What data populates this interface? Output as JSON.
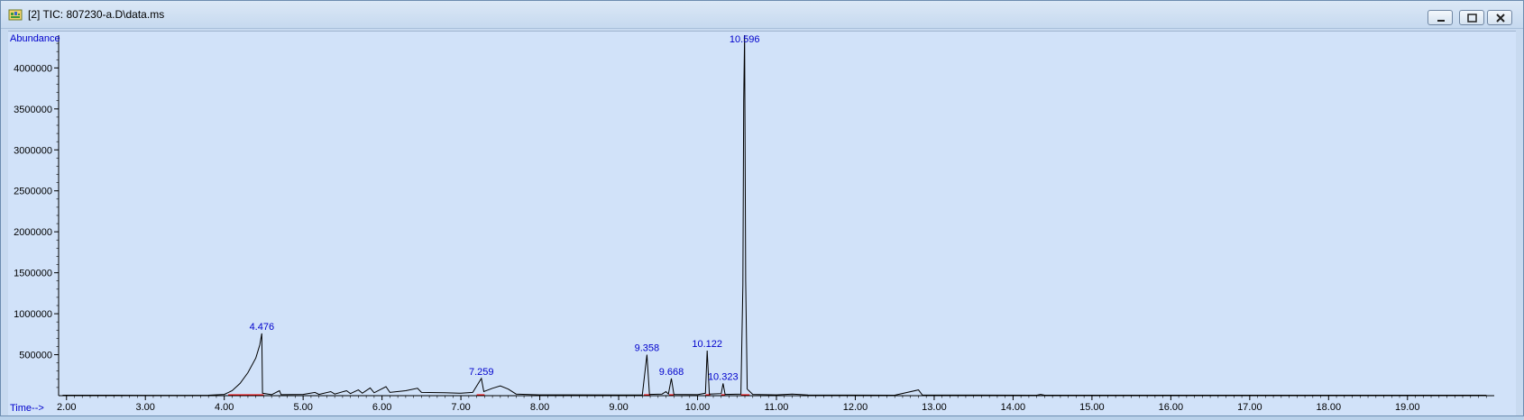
{
  "window": {
    "title": "[2] TIC: 807230-a.D\\data.ms",
    "icon": "chromatogram-app-icon",
    "buttons": [
      "minimize",
      "maximize",
      "close"
    ]
  },
  "colors": {
    "plot_bg": "#d1e2f9",
    "label_blue": "#0000cc",
    "trace": "#000000",
    "baseline": "#ff0000"
  },
  "chart_data": {
    "type": "line",
    "title": "",
    "xlabel": "Time-->",
    "ylabel": "Abundance",
    "xlim": [
      1.9,
      20.1
    ],
    "ylim": [
      0,
      4400000
    ],
    "x_ticks": [
      2,
      3,
      4,
      5,
      6,
      7,
      8,
      9,
      10,
      11,
      12,
      13,
      14,
      15,
      16,
      17,
      18,
      19
    ],
    "x_tick_labels": [
      "2.00",
      "3.00",
      "4.00",
      "5.00",
      "6.00",
      "7.00",
      "8.00",
      "9.00",
      "10.00",
      "11.00",
      "12.00",
      "13.00",
      "14.00",
      "15.00",
      "16.00",
      "17.00",
      "18.00",
      "19.00"
    ],
    "y_ticks": [
      500000,
      1000000,
      1500000,
      2000000,
      2500000,
      3000000,
      3500000,
      4000000
    ],
    "y_tick_labels": [
      "500000",
      "1000000",
      "1500000",
      "2000000",
      "2500000",
      "3000000",
      "3500000",
      "4000000"
    ],
    "grid": false,
    "peak_labels": [
      {
        "rt": 4.476,
        "label": "4.476",
        "height": 760000
      },
      {
        "rt": 7.259,
        "label": "7.259",
        "height": 210000
      },
      {
        "rt": 9.358,
        "label": "9.358",
        "height": 500000
      },
      {
        "rt": 9.668,
        "label": "9.668",
        "height": 210000
      },
      {
        "rt": 10.122,
        "label": "10.122",
        "height": 550000
      },
      {
        "rt": 10.323,
        "label": "10.323",
        "height": 150000
      },
      {
        "rt": 10.596,
        "label": "10.596",
        "height": 4400000
      }
    ],
    "series": [
      {
        "values": [
          [
            1.95,
            6000
          ],
          [
            2.3,
            5000
          ],
          [
            3.0,
            4000
          ],
          [
            3.8,
            6000
          ],
          [
            4.0,
            15000
          ],
          [
            4.1,
            60000
          ],
          [
            4.2,
            150000
          ],
          [
            4.3,
            280000
          ],
          [
            4.4,
            460000
          ],
          [
            4.45,
            620000
          ],
          [
            4.476,
            760000
          ],
          [
            4.485,
            30000
          ],
          [
            4.6,
            12000
          ],
          [
            4.7,
            60000
          ],
          [
            4.72,
            12000
          ],
          [
            5.0,
            15000
          ],
          [
            5.15,
            40000
          ],
          [
            5.2,
            15000
          ],
          [
            5.35,
            50000
          ],
          [
            5.4,
            20000
          ],
          [
            5.55,
            60000
          ],
          [
            5.6,
            25000
          ],
          [
            5.7,
            70000
          ],
          [
            5.75,
            30000
          ],
          [
            5.85,
            95000
          ],
          [
            5.9,
            35000
          ],
          [
            6.05,
            110000
          ],
          [
            6.1,
            40000
          ],
          [
            6.3,
            60000
          ],
          [
            6.45,
            90000
          ],
          [
            6.5,
            40000
          ],
          [
            6.8,
            35000
          ],
          [
            7.0,
            30000
          ],
          [
            7.15,
            40000
          ],
          [
            7.259,
            210000
          ],
          [
            7.29,
            50000
          ],
          [
            7.4,
            90000
          ],
          [
            7.5,
            120000
          ],
          [
            7.6,
            80000
          ],
          [
            7.7,
            20000
          ],
          [
            8.0,
            10000
          ],
          [
            9.0,
            8000
          ],
          [
            9.3,
            10000
          ],
          [
            9.358,
            500000
          ],
          [
            9.39,
            15000
          ],
          [
            9.55,
            20000
          ],
          [
            9.6,
            50000
          ],
          [
            9.63,
            20000
          ],
          [
            9.668,
            210000
          ],
          [
            9.7,
            15000
          ],
          [
            10.0,
            12000
          ],
          [
            10.1,
            30000
          ],
          [
            10.122,
            550000
          ],
          [
            10.15,
            20000
          ],
          [
            10.3,
            25000
          ],
          [
            10.323,
            150000
          ],
          [
            10.35,
            15000
          ],
          [
            10.55,
            20000
          ],
          [
            10.575,
            1350000
          ],
          [
            10.585,
            3600000
          ],
          [
            10.596,
            4400000
          ],
          [
            10.61,
            1400000
          ],
          [
            10.63,
            80000
          ],
          [
            10.7,
            15000
          ],
          [
            11.0,
            10000
          ],
          [
            11.2,
            20000
          ],
          [
            11.4,
            8000
          ],
          [
            12.5,
            6000
          ],
          [
            12.8,
            70000
          ],
          [
            12.85,
            8000
          ],
          [
            14.3,
            6000
          ],
          [
            14.35,
            15000
          ],
          [
            14.4,
            6000
          ],
          [
            17.0,
            5000
          ],
          [
            20.0,
            5000
          ]
        ]
      }
    ]
  }
}
